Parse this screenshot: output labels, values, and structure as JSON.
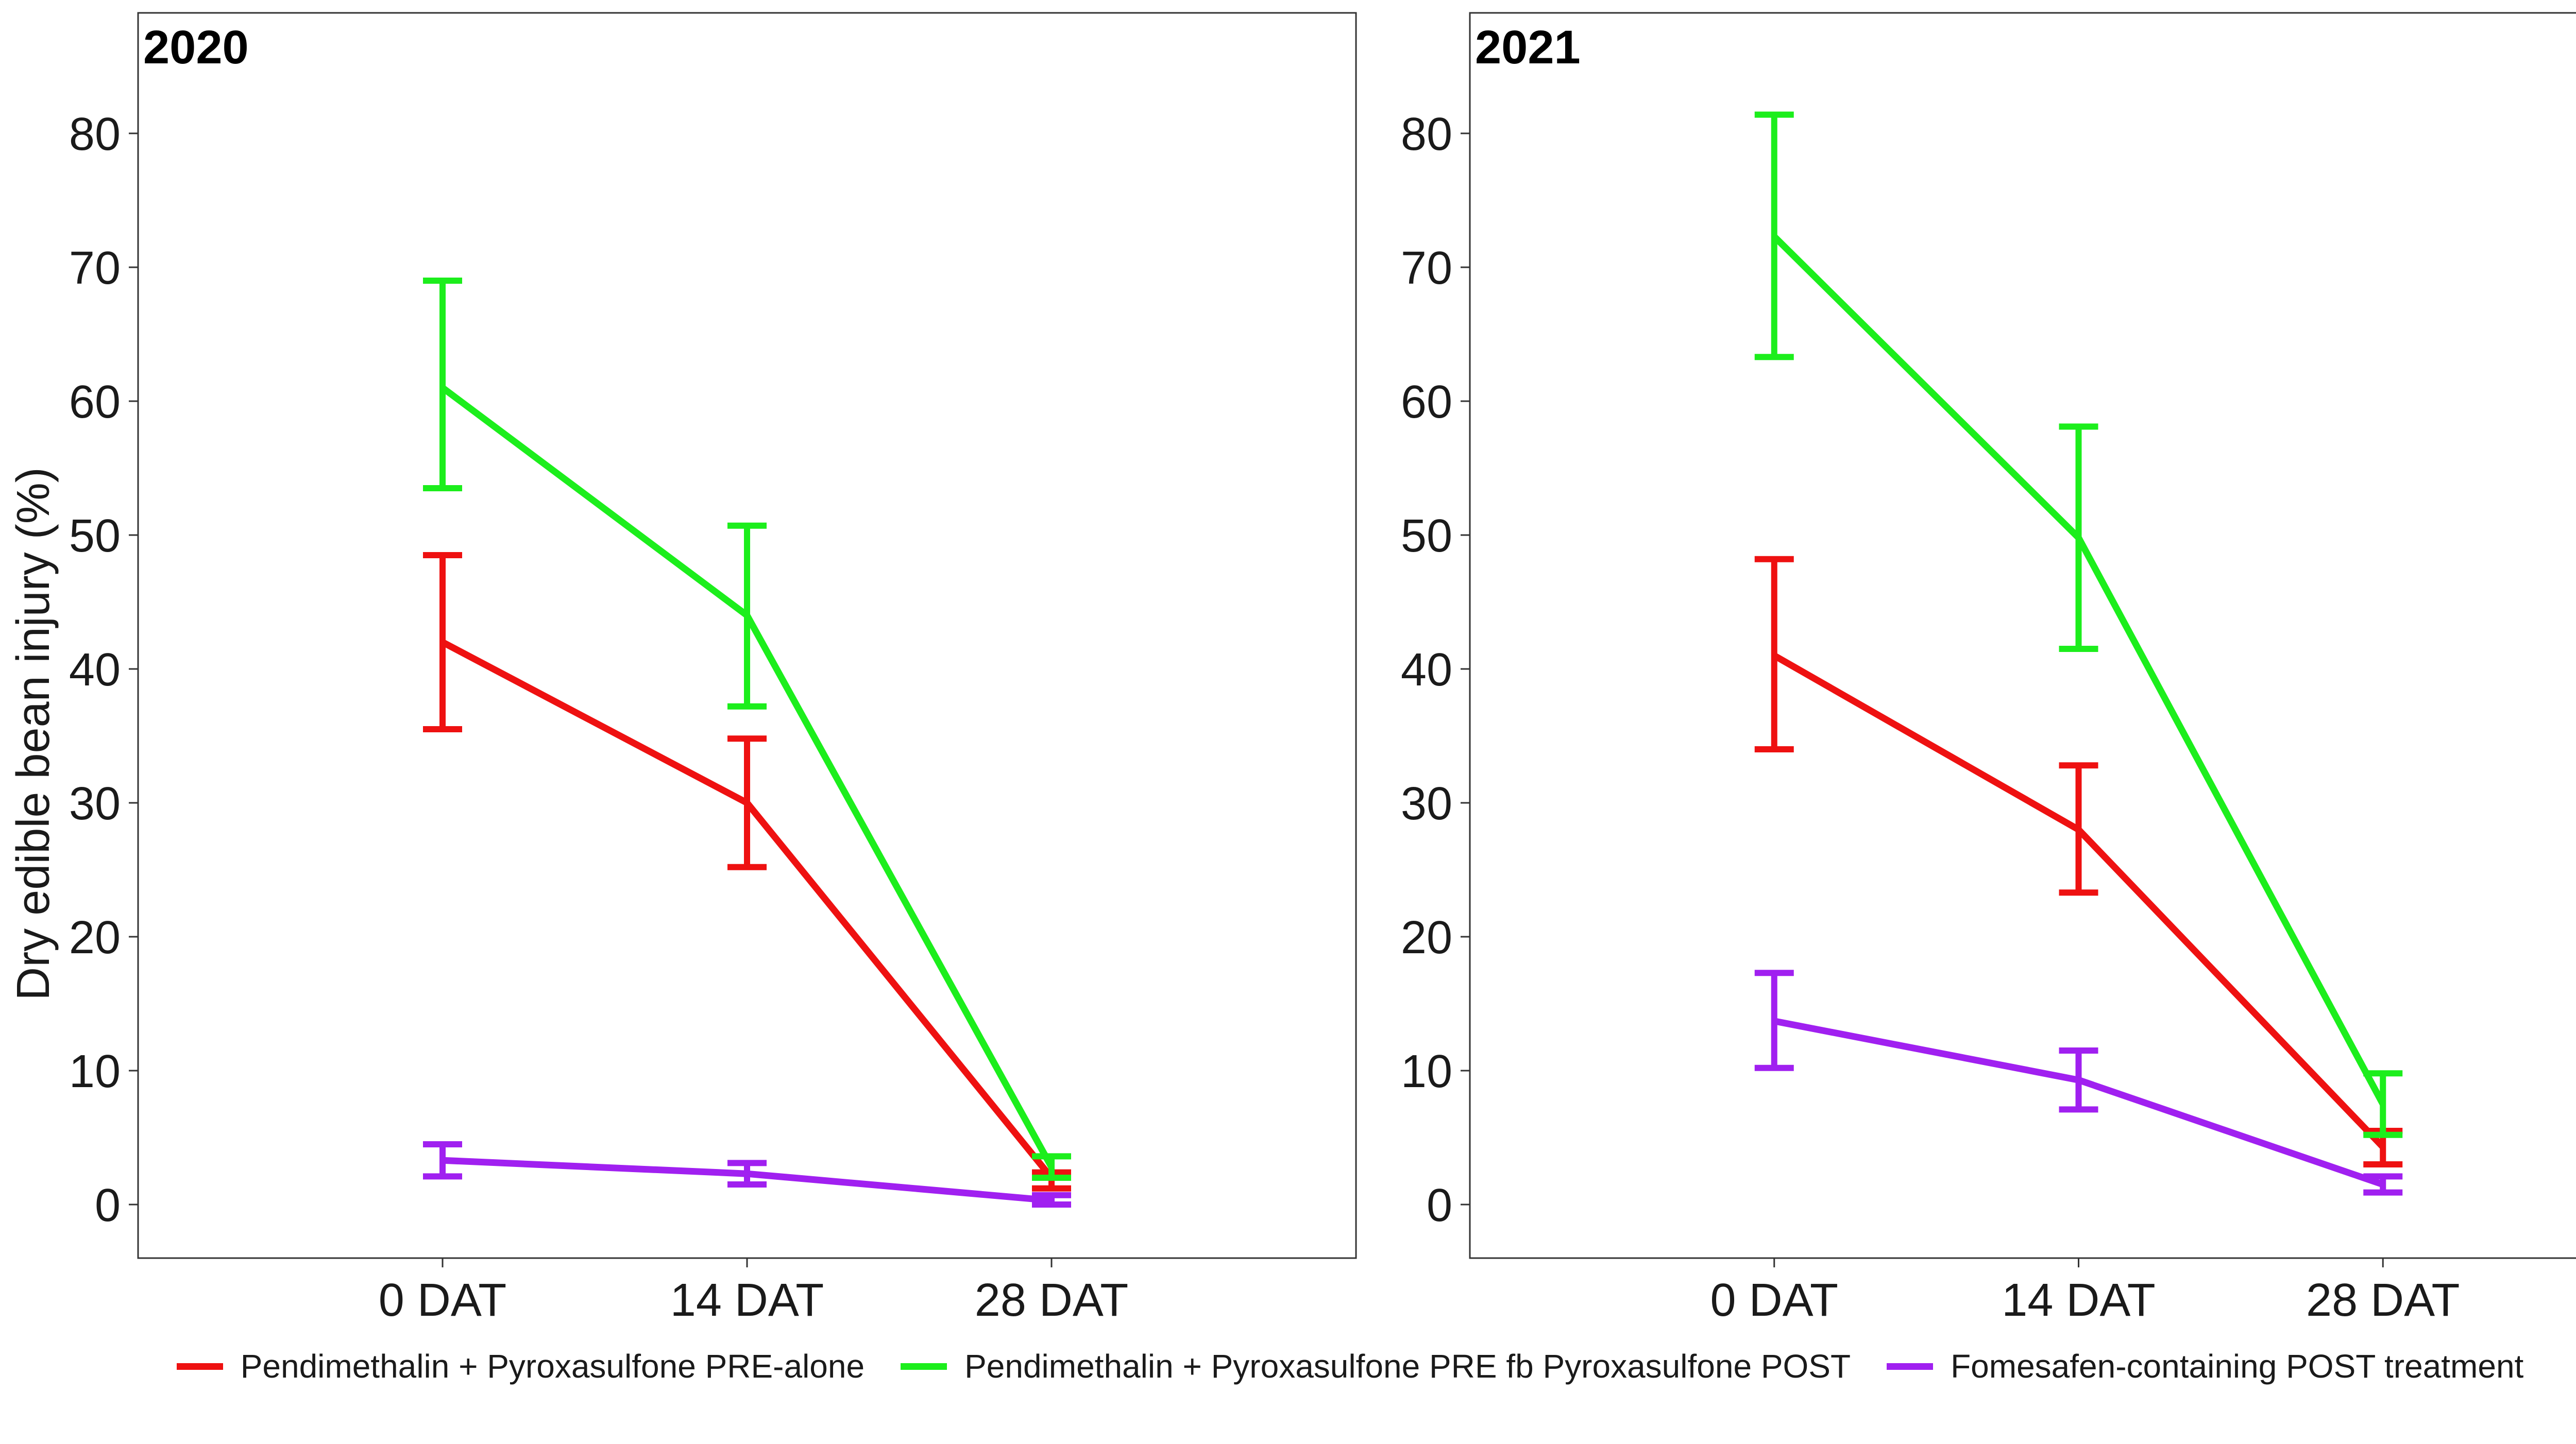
{
  "figure": {
    "ylabel": "Dry edible bean injury (%)"
  },
  "chart_data": [
    {
      "type": "line",
      "panel_label": "2020",
      "categories": [
        "0 DAT",
        "14 DAT",
        "28 DAT"
      ],
      "ylim": [
        -4,
        89
      ],
      "yticks": [
        0,
        10,
        20,
        30,
        40,
        50,
        60,
        70,
        80
      ],
      "grid": false,
      "legend": "bottom",
      "series": [
        {
          "name": "Pendimethalin + Pyroxasulfone PRE-alone",
          "color": "#ee1111",
          "values": [
            42,
            30,
            2
          ],
          "err_low": [
            35.5,
            25.2,
            1.2
          ],
          "err_high": [
            48.5,
            34.8,
            2.4
          ]
        },
        {
          "name": "Pendimethalin + Pyroxasulfone PRE fb Pyroxasulfone POST",
          "color": "#1cee1c",
          "values": [
            61,
            44,
            2.8
          ],
          "err_low": [
            53.5,
            37.2,
            2.0
          ],
          "err_high": [
            69,
            50.7,
            3.6
          ]
        },
        {
          "name": "Fomesafen-containing POST treatment",
          "color": "#a020f0",
          "values": [
            3.3,
            2.3,
            0.3
          ],
          "err_low": [
            2.1,
            1.5,
            0
          ],
          "err_high": [
            4.5,
            3.1,
            0.7
          ]
        }
      ]
    },
    {
      "type": "line",
      "panel_label": "2021",
      "categories": [
        "0 DAT",
        "14 DAT",
        "28 DAT"
      ],
      "ylim": [
        -4,
        89
      ],
      "yticks": [
        0,
        10,
        20,
        30,
        40,
        50,
        60,
        70,
        80
      ],
      "grid": false,
      "legend": "bottom",
      "series": [
        {
          "name": "Pendimethalin + Pyroxasulfone PRE-alone",
          "color": "#ee1111",
          "values": [
            41,
            28,
            4.3
          ],
          "err_low": [
            34,
            23.3,
            3.0
          ],
          "err_high": [
            48.2,
            32.8,
            5.5
          ]
        },
        {
          "name": "Pendimethalin + Pyroxasulfone PRE fb Pyroxasulfone POST",
          "color": "#1cee1c",
          "values": [
            72.3,
            49.8,
            7.5
          ],
          "err_low": [
            63.3,
            41.5,
            5.2
          ],
          "err_high": [
            81.4,
            58.1,
            9.8
          ]
        },
        {
          "name": "Fomesafen-containing POST treatment",
          "color": "#a020f0",
          "values": [
            13.7,
            9.3,
            1.5
          ],
          "err_low": [
            10.2,
            7.1,
            0.9
          ],
          "err_high": [
            17.3,
            11.5,
            2.1
          ]
        }
      ]
    }
  ],
  "legend": [
    {
      "label": "Pendimethalin + Pyroxasulfone PRE-alone",
      "color": "#ee1111"
    },
    {
      "label": "Pendimethalin + Pyroxasulfone PRE fb Pyroxasulfone POST",
      "color": "#1cee1c"
    },
    {
      "label": "Fomesafen-containing POST treatment",
      "color": "#a020f0"
    }
  ]
}
